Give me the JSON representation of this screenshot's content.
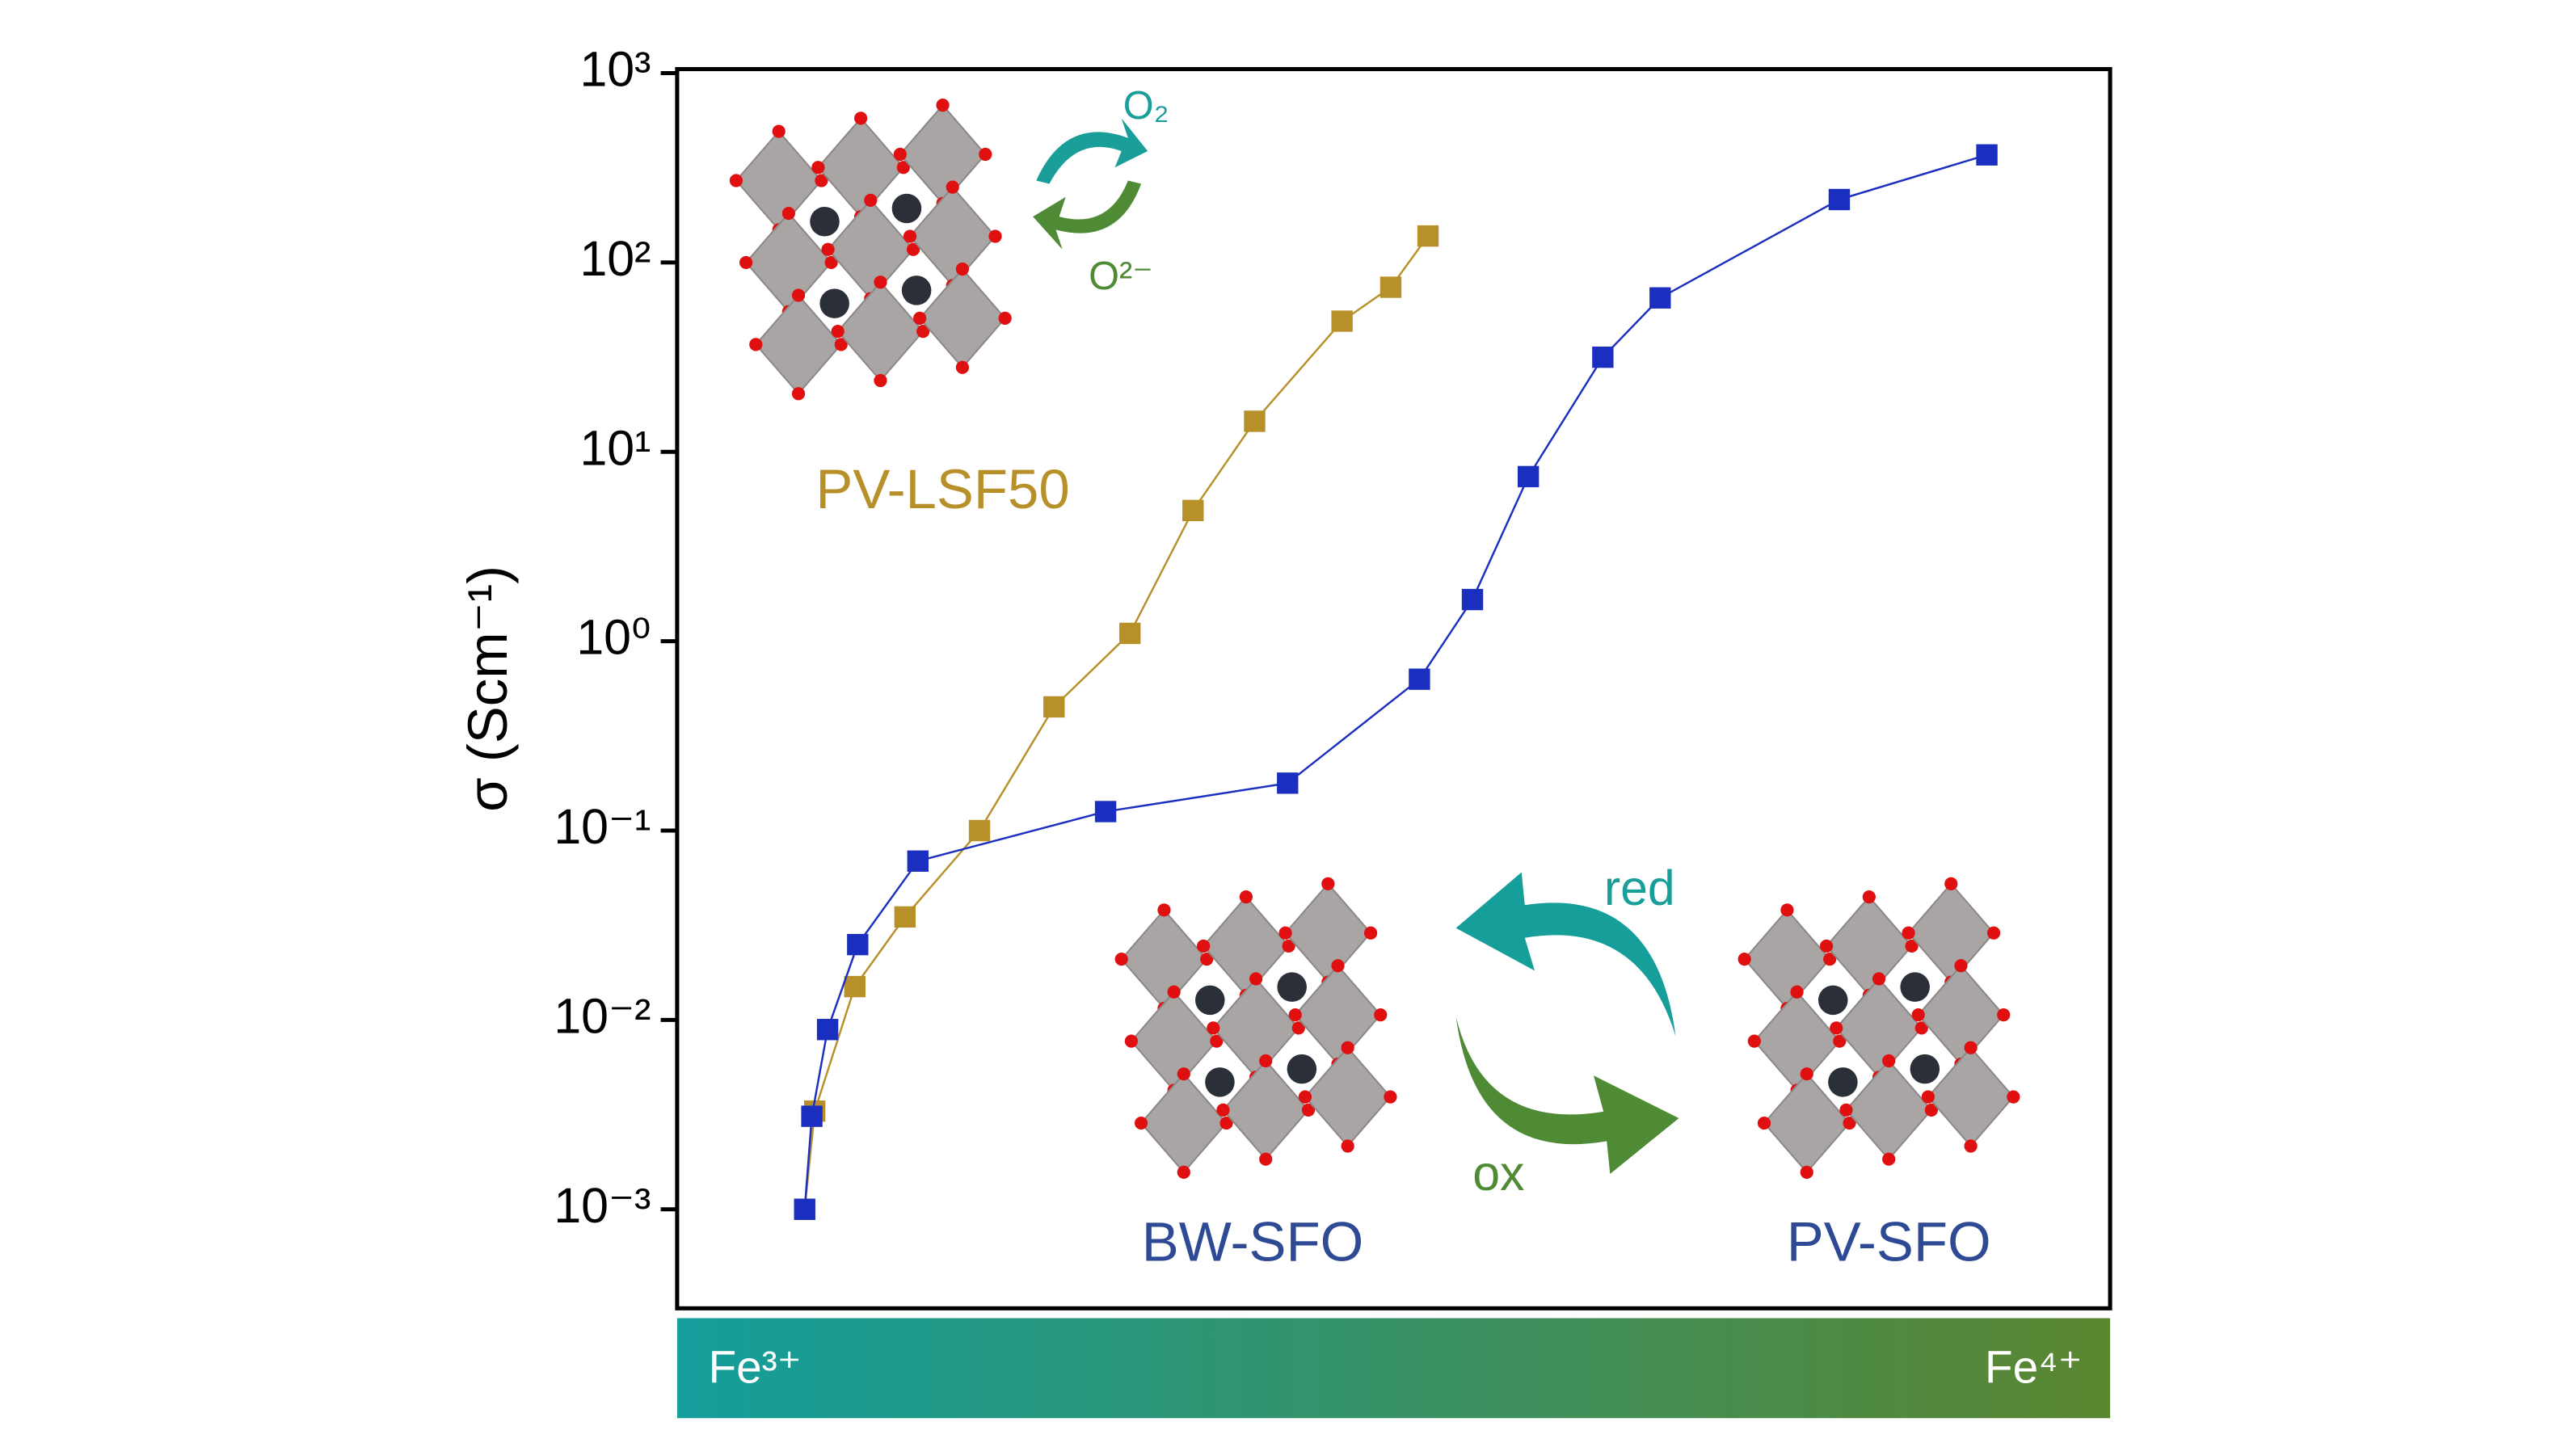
{
  "chart_data": {
    "type": "line",
    "y_label": "σ (Scm⁻¹)",
    "log_y": true,
    "xlim": [
      0,
      100
    ],
    "ylim": [
      0.0003,
      1050
    ],
    "yticks": [
      {
        "value": 0.001,
        "label": "10⁻³"
      },
      {
        "value": 0.01,
        "label": "10⁻²"
      },
      {
        "value": 0.1,
        "label": "10⁻¹"
      },
      {
        "value": 1,
        "label": "10⁰"
      },
      {
        "value": 10,
        "label": "10¹"
      },
      {
        "value": 100,
        "label": "10²"
      },
      {
        "value": 1000,
        "label": "10³"
      }
    ],
    "series": [
      {
        "color": "#b8902a",
        "x": [
          8.9,
          9.6,
          12.4,
          15.9,
          21.1,
          26.3,
          31.6,
          36.0,
          40.3,
          46.4,
          49.8,
          52.4
        ],
        "values": [
          0.001,
          0.0033,
          0.015,
          0.035,
          0.1,
          0.45,
          1.1,
          4.9,
          14.5,
          49,
          74,
          138
        ]
      },
      {
        "color": "#1a2fbf",
        "x": [
          8.9,
          9.4,
          10.5,
          12.6,
          16.8,
          29.9,
          42.6,
          51.8,
          55.5,
          59.4,
          64.6,
          68.6,
          81.1,
          91.4
        ],
        "values": [
          0.001,
          0.0031,
          0.0089,
          0.025,
          0.069,
          0.126,
          0.178,
          0.63,
          1.66,
          7.4,
          31.6,
          65,
          215,
          370
        ]
      }
    ],
    "annotations": {
      "lsf": "PV-LSF50",
      "bw": "BW-SFO",
      "pv": "PV-SFO",
      "red": "red",
      "ox": "ox",
      "o2": "O₂",
      "o2minus": "O²⁻",
      "fe3": "Fe³⁺",
      "fe4": "Fe⁴⁺"
    }
  }
}
